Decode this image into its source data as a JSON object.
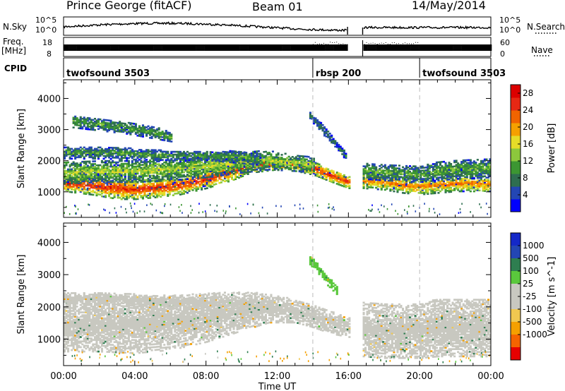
{
  "header": {
    "station": "Prince George (fitACF)",
    "beam": "Beam 01",
    "date": "14/May/2014"
  },
  "strip_labels": {
    "nsky": "N.Sky",
    "nsky_ticks": [
      "10^5",
      "10^0"
    ],
    "nsearch": "N.Search",
    "nsearch_ticks": [
      "10^5",
      "10^0"
    ],
    "freq_line1": "Freq.",
    "freq_line2": "[MHz]",
    "freq_ticks": [
      "18",
      "8"
    ],
    "nave": "Nave",
    "nave_ticks": [
      "60",
      "0"
    ],
    "cpid": "CPID"
  },
  "cpid_segments": [
    {
      "label": "twofsound 3503",
      "start_hour": 0,
      "end_hour": 14
    },
    {
      "label": "rbsp 200",
      "start_hour": 14,
      "end_hour": 20
    },
    {
      "label": "twofsound 3503",
      "start_hour": 20,
      "end_hour": 24
    }
  ],
  "colors": {
    "power_scale": [
      "#0000ff",
      "#2346b4",
      "#2e6e50",
      "#3c9632",
      "#8cc83c",
      "#e6dc28",
      "#f5a000",
      "#f06400",
      "#e62814",
      "#dc0000"
    ],
    "velocity_scale": [
      "#e60000",
      "#f56400",
      "#f5a000",
      "#f0c850",
      "#c8c8c0",
      "#c8c8c0",
      "#5ac83c",
      "#2e7e50",
      "#2346b4",
      "#1428c8"
    ]
  },
  "chart_data": [
    {
      "type": "heatmap",
      "name": "power",
      "xlabel": "",
      "ylabel": "Slant Range [km]",
      "xlim": [
        0,
        24
      ],
      "ylim": [
        180,
        4600
      ],
      "yticks": [
        1000,
        2000,
        3000,
        4000
      ],
      "colorbar_label": "Power [dB]",
      "colorbar_ticks": [
        4,
        8,
        12,
        16,
        20,
        24,
        28
      ],
      "colorbar_range": [
        0,
        30
      ],
      "data_gap_hours": [
        16.0,
        16.8
      ],
      "bands": [
        {
          "t": [
            0.0,
            1.5,
            3.0,
            4.0,
            5.0,
            6.5,
            8.0,
            9.5,
            10.5,
            12.0,
            13.0,
            14.0,
            14.8,
            15.5,
            16.0
          ],
          "center_km": [
            1250,
            1200,
            1100,
            1050,
            1100,
            1200,
            1400,
            1650,
            1850,
            1900,
            1850,
            1750,
            1550,
            1400,
            1300
          ],
          "width_km": [
            250,
            300,
            350,
            300,
            300,
            300,
            300,
            280,
            250,
            200,
            200,
            220,
            200,
            200,
            200
          ],
          "power_db": 26
        },
        {
          "t": [
            0.0,
            2.0,
            4.0,
            6.0,
            8.0,
            10.0,
            11.5,
            13.0,
            14.0
          ],
          "center_km": [
            1600,
            1650,
            1650,
            1700,
            1800,
            1950,
            2000,
            1900,
            1850
          ],
          "width_km": [
            350,
            350,
            350,
            350,
            350,
            350,
            300,
            250,
            250
          ],
          "power_db": 15
        },
        {
          "t": [
            0.0,
            2.0,
            4.0,
            6.0,
            8.0,
            10.0,
            11.0
          ],
          "center_km": [
            2250,
            2250,
            2200,
            2150,
            2150,
            2100,
            2000
          ],
          "width_km": [
            200,
            200,
            180,
            150,
            150,
            200,
            150
          ],
          "power_db": 11
        },
        {
          "t": [
            13.8,
            14.3,
            14.8,
            15.3,
            15.8
          ],
          "center_km": [
            3450,
            3150,
            2800,
            2450,
            2150
          ],
          "width_km": [
            150,
            150,
            150,
            120,
            120
          ],
          "power_db": 8
        },
        {
          "t": [
            0.5,
            2.0,
            3.5,
            5.0,
            6.0
          ],
          "center_km": [
            3250,
            3150,
            3050,
            2900,
            2750
          ],
          "width_km": [
            200,
            200,
            200,
            200,
            150
          ],
          "power_db": 11
        },
        {
          "t": [
            16.8,
            18.0,
            19.0,
            20.0,
            21.0,
            22.0,
            23.0,
            24.0
          ],
          "center_km": [
            1350,
            1300,
            1200,
            1150,
            1200,
            1250,
            1250,
            1200
          ],
          "width_km": [
            250,
            250,
            250,
            250,
            250,
            250,
            250,
            250
          ],
          "power_db": 22
        },
        {
          "t": [
            16.8,
            18.0,
            20.0,
            21.0,
            22.0,
            24.0
          ],
          "center_km": [
            1650,
            1600,
            1550,
            1650,
            1700,
            1750
          ],
          "width_km": [
            250,
            250,
            250,
            300,
            300,
            300
          ],
          "power_db": 12
        }
      ]
    },
    {
      "type": "heatmap",
      "name": "velocity",
      "xlabel": "Time UT",
      "ylabel": "Slant Range [km]",
      "xlim": [
        0,
        24
      ],
      "ylim": [
        180,
        4600
      ],
      "yticks": [
        1000,
        2000,
        3000,
        4000
      ],
      "xticks": [
        "00:00",
        "04:00",
        "08:00",
        "12:00",
        "16:00",
        "20:00",
        "00:00"
      ],
      "colorbar_label": "Velocity [m s^-1]",
      "colorbar_ticks": [
        1000,
        500,
        100,
        25,
        -25,
        -100,
        -500,
        -1000
      ],
      "data_gap_hours": [
        16.0,
        16.8
      ],
      "bands": [
        {
          "t": [
            0.0,
            2.0,
            4.0,
            6.0,
            8.0,
            10.0,
            11.5,
            13.0,
            14.0,
            15.0,
            16.0
          ],
          "center_km": [
            1400,
            1450,
            1450,
            1500,
            1650,
            1850,
            1950,
            1850,
            1700,
            1500,
            1350
          ],
          "width_km": [
            800,
            850,
            900,
            850,
            750,
            600,
            450,
            350,
            350,
            350,
            300
          ],
          "velocity": 0
        },
        {
          "t": [
            16.8,
            18.0,
            20.0,
            21.0,
            22.0,
            24.0
          ],
          "center_km": [
            1300,
            1250,
            1250,
            1350,
            1350,
            1350
          ],
          "width_km": [
            850,
            850,
            850,
            900,
            900,
            900
          ],
          "velocity": 0
        },
        {
          "t": [
            0.0,
            2.0,
            4.0,
            6.0,
            8.0,
            10.0,
            11.0
          ],
          "center_km": [
            2250,
            2250,
            2200,
            2150,
            2150,
            2100,
            2000
          ],
          "width_km": [
            200,
            200,
            180,
            150,
            150,
            200,
            150
          ],
          "velocity": 0
        },
        {
          "t": [
            13.8,
            14.3,
            14.8,
            15.3
          ],
          "center_km": [
            3450,
            3150,
            2800,
            2500
          ],
          "width_km": [
            150,
            150,
            150,
            120
          ],
          "velocity": 80
        }
      ]
    }
  ]
}
